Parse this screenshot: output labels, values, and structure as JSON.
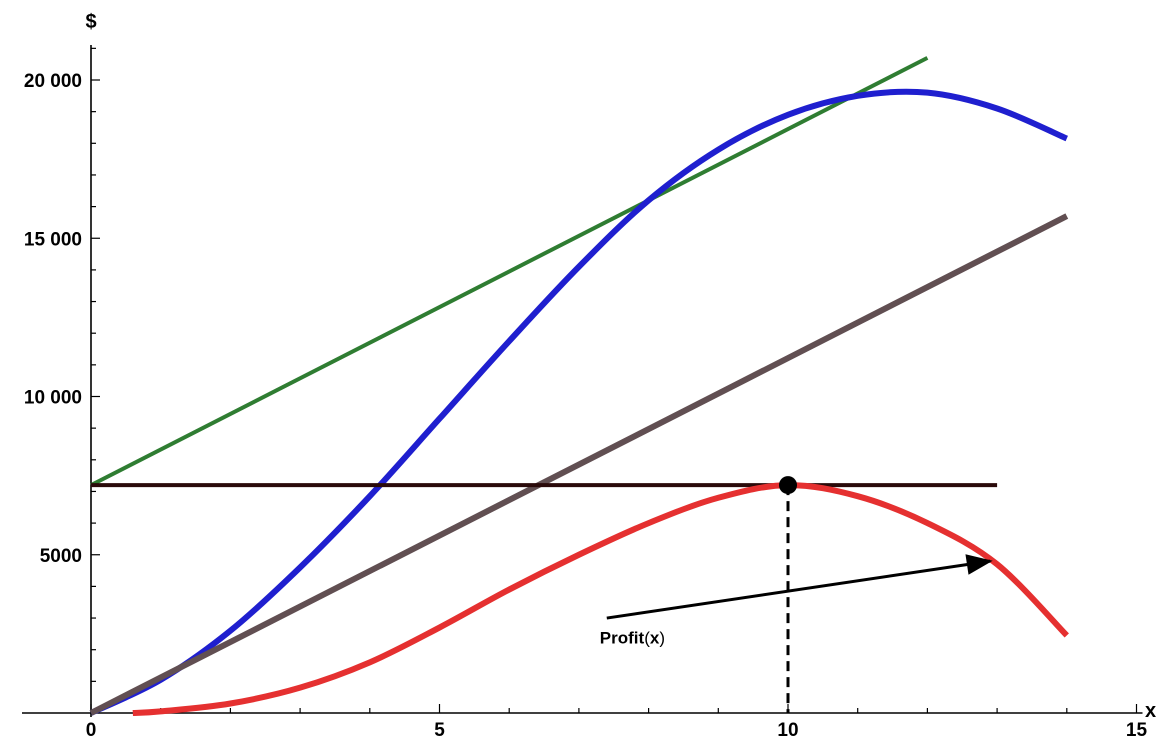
{
  "chart_data": {
    "type": "line",
    "title": "",
    "xlabel": "x",
    "ylabel": "$",
    "xlim": [
      0,
      15
    ],
    "ylim": [
      0,
      21000
    ],
    "grid": false,
    "x_ticks": [
      {
        "value": 0,
        "label": "0"
      },
      {
        "value": 5,
        "label": "5"
      },
      {
        "value": 10,
        "label": "10"
      },
      {
        "value": 15,
        "label": "15"
      }
    ],
    "y_ticks": [
      {
        "value": 5000,
        "label": "5000"
      },
      {
        "value": 10000,
        "label": "10 000"
      },
      {
        "value": 15000,
        "label": "15 000"
      },
      {
        "value": 20000,
        "label": "20 000"
      }
    ],
    "series": [
      {
        "color": "#2f7d32",
        "x": [
          0,
          12
        ],
        "y": [
          7200,
          20700
        ]
      },
      {
        "color": "#1f1fcf",
        "x": [
          0,
          1,
          2,
          3,
          4,
          5,
          6,
          7,
          8,
          9,
          10,
          11,
          12,
          13,
          14
        ],
        "y": [
          0,
          1050,
          2600,
          4600,
          6850,
          9300,
          11750,
          14100,
          16200,
          17800,
          18900,
          19500,
          19600,
          19100,
          18150
        ]
      },
      {
        "color": "#614f52",
        "x": [
          0,
          14
        ],
        "y": [
          0,
          15700
        ]
      },
      {
        "color": "#2a0a0a",
        "x": [
          0,
          13
        ],
        "y": [
          7200,
          7200
        ]
      },
      {
        "color": "#e53030",
        "x": [
          0.6,
          1,
          2,
          3,
          4,
          5,
          6,
          7,
          8,
          9,
          10,
          11,
          12,
          13,
          14
        ],
        "y": [
          0,
          50,
          300,
          800,
          1600,
          2700,
          3900,
          5000,
          6000,
          6800,
          7200,
          6850,
          6000,
          4700,
          2450
        ]
      }
    ],
    "points": [
      {
        "x": 10,
        "y": 7200,
        "color": "#000000"
      }
    ],
    "dropline": {
      "x": 10,
      "y_from": 0,
      "y_to": 7200
    },
    "annotations": [
      {
        "text": "Profit",
        "suffix": "(",
        "var": "x",
        "close": ")",
        "x": 7.3,
        "y": 2200,
        "arrow_from": [
          7.4,
          3000
        ],
        "arrow_to": [
          12.9,
          4800
        ]
      }
    ]
  }
}
